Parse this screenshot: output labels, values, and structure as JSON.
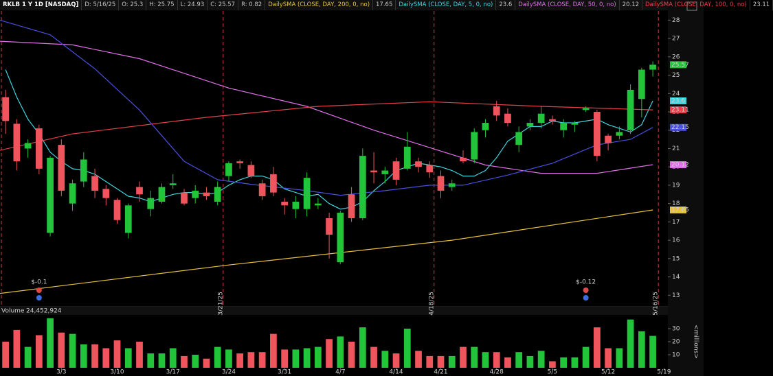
{
  "chart_data": {
    "type": "candlestick",
    "header": [
      "RKLB 1 Y 1D [NASDAQ]",
      "D: 5/16/25",
      "O: 25.3",
      "H: 25.75",
      "L: 24.93",
      "C: 25.57",
      "R: 0.82"
    ],
    "ohlc": {
      "open": [
        23.8,
        22.35,
        21.0,
        22.1,
        16.4,
        21.2,
        18.0,
        19.2,
        19.5,
        18.8,
        18.2,
        16.4,
        18.9,
        17.7,
        18.1,
        19.0,
        18.6,
        18.3,
        18.6,
        18.1,
        19.5,
        20.3,
        20.1,
        19.1,
        19.6,
        18.1,
        17.7,
        17.7,
        17.9,
        17.2,
        14.8,
        18.5,
        17.2,
        19.8,
        19.6,
        20.3,
        19.9,
        20.3,
        20.1,
        19.5,
        18.9,
        20.5,
        20.4,
        22.0,
        23.3,
        22.9,
        21.2,
        22.2,
        22.4,
        22.6,
        22.0,
        22.3,
        23.1,
        23.0,
        21.7,
        21.7,
        22.0,
        23.7,
        25.3
      ],
      "high": [
        24.2,
        22.6,
        21.5,
        22.3,
        20.6,
        21.5,
        19.3,
        20.8,
        19.9,
        19.0,
        18.3,
        18.0,
        19.2,
        18.7,
        19.1,
        19.6,
        18.8,
        19.0,
        18.9,
        19.2,
        20.3,
        20.4,
        20.3,
        19.3,
        20.0,
        18.3,
        18.4,
        19.7,
        18.3,
        17.5,
        17.6,
        18.9,
        21.0,
        20.8,
        20.0,
        20.5,
        21.9,
        20.5,
        20.3,
        19.8,
        19.3,
        20.9,
        22.1,
        22.6,
        23.6,
        23.2,
        22.2,
        22.6,
        23.3,
        22.8,
        22.6,
        22.5,
        23.3,
        23.1,
        21.8,
        22.2,
        24.5,
        25.4,
        25.75
      ],
      "low": [
        21.8,
        19.8,
        20.5,
        19.6,
        16.2,
        18.4,
        17.6,
        18.9,
        18.3,
        17.9,
        16.9,
        16.1,
        18.1,
        17.3,
        18.0,
        18.8,
        17.9,
        18.0,
        18.2,
        17.9,
        19.2,
        19.9,
        19.4,
        18.2,
        18.4,
        17.4,
        17.2,
        17.3,
        17.7,
        15.0,
        14.7,
        17.0,
        17.1,
        19.1,
        19.1,
        19.0,
        19.8,
        19.7,
        19.4,
        18.3,
        18.7,
        20.2,
        20.2,
        21.6,
        22.5,
        22.2,
        20.8,
        22.0,
        22.1,
        22.3,
        21.6,
        21.9,
        23.0,
        20.3,
        20.9,
        21.5,
        21.8,
        22.7,
        24.93
      ],
      "close": [
        22.5,
        20.3,
        21.3,
        19.9,
        20.5,
        18.7,
        19.1,
        20.4,
        18.7,
        18.3,
        17.1,
        17.9,
        18.5,
        18.3,
        18.9,
        19.1,
        18.0,
        18.7,
        18.4,
        18.9,
        20.2,
        20.2,
        19.5,
        18.4,
        18.6,
        17.9,
        18.1,
        19.4,
        18.0,
        16.3,
        17.5,
        17.2,
        20.6,
        19.7,
        19.8,
        19.3,
        21.1,
        20.0,
        19.7,
        18.7,
        19.1,
        20.3,
        21.9,
        22.4,
        22.8,
        22.4,
        21.9,
        22.4,
        22.9,
        22.5,
        22.4,
        22.4,
        23.2,
        20.6,
        21.3,
        21.9,
        24.2,
        25.3,
        25.57
      ],
      "up_color": "#22c43a",
      "down_color": "#f0545c"
    },
    "xlim": [
      -0.5,
      59.35
    ],
    "ylim": [
      12.45,
      28.5
    ],
    "yticks": [
      13,
      14,
      15,
      16,
      17,
      18,
      19,
      20,
      21,
      22,
      23,
      24,
      25,
      26,
      27,
      28
    ],
    "xticks": [
      {
        "value": 5,
        "label": "3/3"
      },
      {
        "value": 10,
        "label": "3/10"
      },
      {
        "value": 15,
        "label": "3/17"
      },
      {
        "value": 20,
        "label": "3/24"
      },
      {
        "value": 25,
        "label": "3/31"
      },
      {
        "value": 30,
        "label": "4/7"
      },
      {
        "value": 35,
        "label": "4/14"
      },
      {
        "value": 39,
        "label": "4/21"
      },
      {
        "value": 44,
        "label": "4/28"
      },
      {
        "value": 49,
        "label": "5/5"
      },
      {
        "value": 54,
        "label": "5/12"
      },
      {
        "value": 59,
        "label": "5/19"
      }
    ],
    "series": [
      {
        "name": "DailySMA (CLOSE, DAY, 200, 0, no)",
        "color": "#e8c23a",
        "x": [
          -0.5,
          20,
          40,
          58
        ],
        "values": [
          13.1,
          14.65,
          16.0,
          17.65
        ]
      },
      {
        "name": "DailySMA (CLOSE, DAY, 5, 0, no)",
        "color": "#3fd6e0",
        "x": [
          0,
          1,
          2,
          3,
          4,
          5,
          6,
          7,
          8,
          9,
          10,
          11,
          12,
          13,
          14,
          15,
          16,
          17,
          18,
          19,
          20,
          21,
          22,
          23,
          24,
          25,
          26,
          27,
          28,
          29,
          30,
          31,
          32,
          33,
          34,
          35,
          36,
          37,
          38,
          39,
          40,
          41,
          42,
          43,
          44,
          45,
          46,
          47,
          48,
          49,
          50,
          51,
          52,
          53,
          54,
          55,
          56,
          57,
          58
        ],
        "values": [
          25.3,
          23.8,
          22.6,
          21.8,
          20.8,
          20.3,
          19.9,
          19.8,
          19.6,
          19.2,
          18.8,
          18.4,
          18.3,
          18.1,
          18.3,
          18.5,
          18.6,
          18.6,
          18.5,
          18.6,
          19.0,
          19.3,
          19.5,
          19.5,
          19.3,
          18.8,
          18.6,
          18.4,
          18.5,
          18.0,
          17.7,
          17.8,
          18.1,
          18.7,
          19.2,
          19.8,
          20.0,
          20.2,
          20.1,
          20.0,
          19.8,
          19.5,
          19.5,
          19.8,
          20.5,
          21.4,
          21.8,
          22.2,
          22.2,
          22.5,
          22.4,
          22.4,
          22.5,
          22.6,
          22.3,
          22.1,
          21.9,
          22.3,
          23.6
        ]
      },
      {
        "name": "DailySMA (CLOSE, DAY, 50, 0, no)",
        "color": "#e070e8",
        "x": [
          -0.5,
          6,
          12,
          20,
          27,
          33,
          38,
          43,
          48,
          53,
          58
        ],
        "values": [
          26.85,
          26.65,
          25.9,
          24.3,
          23.3,
          22.0,
          21.05,
          20.1,
          19.65,
          19.65,
          20.12
        ]
      },
      {
        "name": "DailySMA (CLOSE, DAY, 100, 0, no)",
        "color": "#e8404a",
        "x": [
          -0.5,
          6,
          18,
          28,
          38,
          48,
          58
        ],
        "values": [
          20.9,
          21.8,
          22.7,
          23.3,
          23.55,
          23.3,
          23.11
        ]
      },
      {
        "color": "#4a50e0",
        "x": [
          -0.5,
          4,
          8,
          12,
          16,
          19,
          22,
          27,
          30,
          34,
          38,
          41,
          45,
          49,
          53,
          56,
          58
        ],
        "values": [
          28.0,
          27.2,
          25.35,
          23.1,
          20.3,
          19.3,
          19.05,
          18.7,
          18.45,
          18.7,
          19.0,
          19.0,
          19.55,
          20.2,
          21.2,
          21.5,
          22.15
        ]
      }
    ],
    "events": [
      {
        "label": "3/21/25",
        "x": 19.5
      },
      {
        "label": "4/18/25",
        "x": 38.4
      },
      {
        "label": "5/16/25",
        "x": 58.5
      }
    ],
    "earnings": [
      {
        "label": "$-0.1",
        "x": 3
      },
      {
        "label": "$-0.12",
        "x": 52
      }
    ],
    "volume": {
      "title": "Volume",
      "last_label": "24,452,924",
      "axis_label": "<millions>",
      "values": [
        20,
        29,
        16,
        25,
        38,
        27,
        26,
        18,
        18,
        15,
        21,
        15,
        20,
        11,
        11,
        15,
        9,
        10,
        7,
        16,
        14,
        11,
        12,
        12,
        26,
        14,
        14,
        15,
        16,
        22,
        24,
        20,
        31,
        16,
        13,
        11,
        30,
        13,
        9,
        9,
        9,
        16,
        16,
        12,
        12,
        8,
        12,
        9,
        13,
        5,
        8,
        8,
        16,
        31,
        15,
        15,
        37,
        28,
        24.452924
      ],
      "ylim": [
        0,
        40
      ],
      "yticks": [
        10,
        20,
        30
      ]
    }
  }
}
